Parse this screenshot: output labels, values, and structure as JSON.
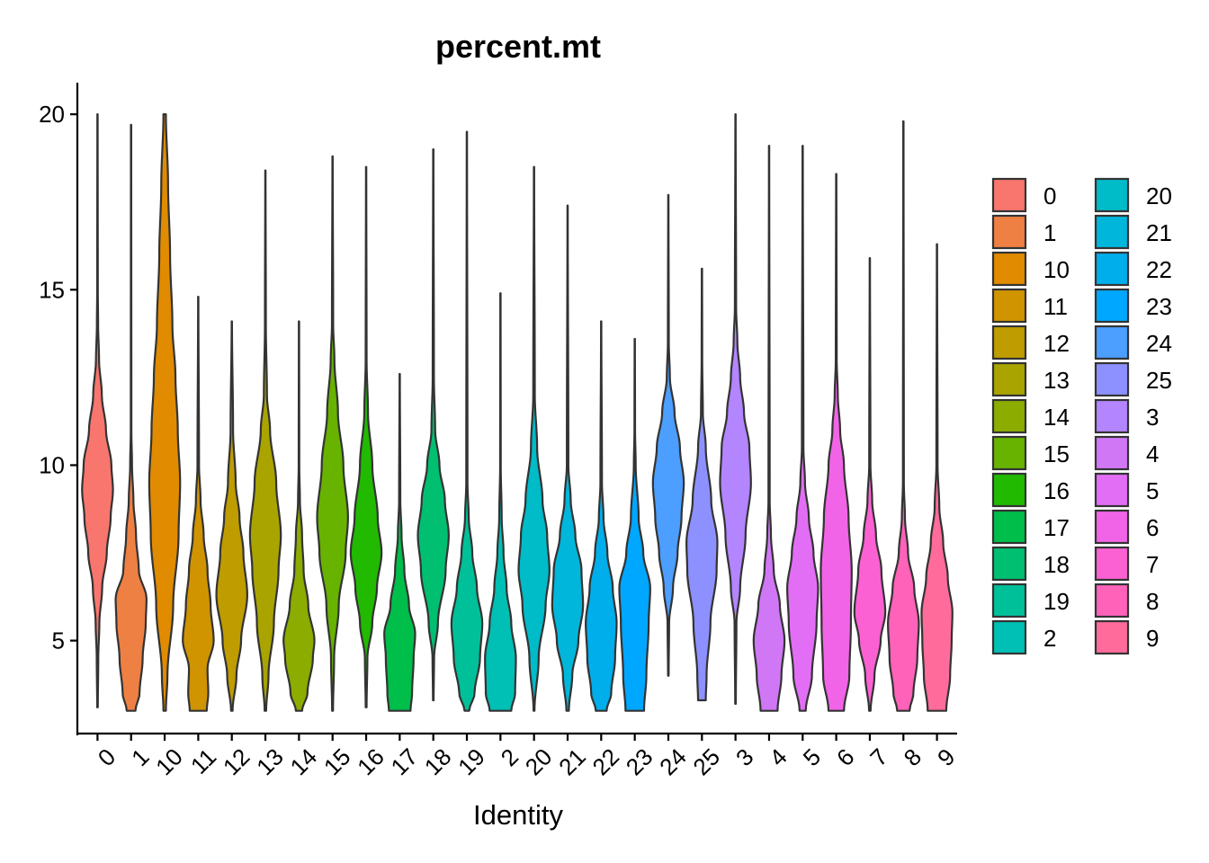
{
  "chart_data": {
    "type": "violin",
    "title": "percent.mt",
    "xlabel": "Identity",
    "ylabel": "",
    "ylim": [
      2.3,
      20.9
    ],
    "yticks": [
      5,
      10,
      15,
      20
    ],
    "grid": false,
    "legend_position": "right",
    "categories": [
      "0",
      "1",
      "10",
      "11",
      "12",
      "13",
      "14",
      "15",
      "16",
      "17",
      "18",
      "19",
      "2",
      "20",
      "21",
      "22",
      "23",
      "24",
      "25",
      "3",
      "4",
      "5",
      "6",
      "7",
      "8",
      "9"
    ],
    "colors": [
      "#F8766D",
      "#EE8044",
      "#E08B00",
      "#D09400",
      "#BF9C00",
      "#A9A400",
      "#8DAC00",
      "#67B300",
      "#21BA00",
      "#00BE4A",
      "#00BF71",
      "#00C09A",
      "#00BFB5",
      "#00BBC8",
      "#00B6DB",
      "#00AEEB",
      "#00A7FF",
      "#4C9EFF",
      "#8D91FF",
      "#B385FF",
      "#D077F6",
      "#E36EF6",
      "#F264E7",
      "#FC61D3",
      "#FF62B9",
      "#FF6C9B"
    ],
    "series": [
      {
        "name": "0",
        "min": 3.1,
        "max": 20.0,
        "profile": [
          [
            3.1,
            0.02
          ],
          [
            4.5,
            0.05
          ],
          [
            5.5,
            0.12
          ],
          [
            6.5,
            0.3
          ],
          [
            7.5,
            0.6
          ],
          [
            8.5,
            0.85
          ],
          [
            9.3,
            1.0
          ],
          [
            10.0,
            0.9
          ],
          [
            11.0,
            0.55
          ],
          [
            12.0,
            0.28
          ],
          [
            13.0,
            0.1
          ],
          [
            14.0,
            0.04
          ],
          [
            15.0,
            0.02
          ],
          [
            20.0,
            0.01
          ]
        ]
      },
      {
        "name": "1",
        "min": 3.0,
        "max": 19.7,
        "profile": [
          [
            3.0,
            0.28
          ],
          [
            3.5,
            0.55
          ],
          [
            4.5,
            0.75
          ],
          [
            5.5,
            0.95
          ],
          [
            6.2,
            1.0
          ],
          [
            7.0,
            0.5
          ],
          [
            8.0,
            0.32
          ],
          [
            9.0,
            0.15
          ],
          [
            10.0,
            0.06
          ],
          [
            11.0,
            0.02
          ],
          [
            19.7,
            0.01
          ]
        ]
      },
      {
        "name": "10",
        "min": 3.0,
        "max": 20.0,
        "profile": [
          [
            3.0,
            0.08
          ],
          [
            4.0,
            0.18
          ],
          [
            6.0,
            0.55
          ],
          [
            8.0,
            0.9
          ],
          [
            9.5,
            1.0
          ],
          [
            11.0,
            0.85
          ],
          [
            12.5,
            0.7
          ],
          [
            14.0,
            0.5
          ],
          [
            16.0,
            0.35
          ],
          [
            18.0,
            0.22
          ],
          [
            20.0,
            0.08
          ]
        ]
      },
      {
        "name": "11",
        "min": 3.0,
        "max": 14.8,
        "profile": [
          [
            3.0,
            0.55
          ],
          [
            3.5,
            0.65
          ],
          [
            4.2,
            0.6
          ],
          [
            5.0,
            1.0
          ],
          [
            6.0,
            0.8
          ],
          [
            7.0,
            0.6
          ],
          [
            8.0,
            0.35
          ],
          [
            9.0,
            0.15
          ],
          [
            10.0,
            0.05
          ],
          [
            14.8,
            0.01
          ]
        ]
      },
      {
        "name": "12",
        "min": 3.0,
        "max": 14.1,
        "profile": [
          [
            3.0,
            0.05
          ],
          [
            4.0,
            0.3
          ],
          [
            5.0,
            0.6
          ],
          [
            6.3,
            1.0
          ],
          [
            7.5,
            0.75
          ],
          [
            8.5,
            0.5
          ],
          [
            9.5,
            0.25
          ],
          [
            11.0,
            0.08
          ],
          [
            14.1,
            0.01
          ]
        ]
      },
      {
        "name": "13",
        "min": 3.0,
        "max": 18.4,
        "profile": [
          [
            3.0,
            0.05
          ],
          [
            4.0,
            0.2
          ],
          [
            5.5,
            0.55
          ],
          [
            7.0,
            0.85
          ],
          [
            8.0,
            1.0
          ],
          [
            9.5,
            0.7
          ],
          [
            11.0,
            0.3
          ],
          [
            12.0,
            0.1
          ],
          [
            14.0,
            0.03
          ],
          [
            18.4,
            0.01
          ]
        ]
      },
      {
        "name": "14",
        "min": 3.0,
        "max": 14.1,
        "profile": [
          [
            3.0,
            0.2
          ],
          [
            3.5,
            0.55
          ],
          [
            4.5,
            0.9
          ],
          [
            5.0,
            1.0
          ],
          [
            6.0,
            0.6
          ],
          [
            7.0,
            0.3
          ],
          [
            8.0,
            0.2
          ],
          [
            9.0,
            0.06
          ],
          [
            10.0,
            0.02
          ],
          [
            14.1,
            0.01
          ]
        ]
      },
      {
        "name": "15",
        "min": 3.0,
        "max": 18.8,
        "profile": [
          [
            3.0,
            0.03
          ],
          [
            4.5,
            0.1
          ],
          [
            6.0,
            0.4
          ],
          [
            7.5,
            0.85
          ],
          [
            8.5,
            1.0
          ],
          [
            10.0,
            0.7
          ],
          [
            11.5,
            0.35
          ],
          [
            13.0,
            0.12
          ],
          [
            14.0,
            0.04
          ],
          [
            18.8,
            0.01
          ]
        ]
      },
      {
        "name": "16",
        "min": 3.1,
        "max": 18.5,
        "profile": [
          [
            3.1,
            0.03
          ],
          [
            4.5,
            0.08
          ],
          [
            5.5,
            0.4
          ],
          [
            6.5,
            0.7
          ],
          [
            7.5,
            1.0
          ],
          [
            8.5,
            0.75
          ],
          [
            10.0,
            0.4
          ],
          [
            11.5,
            0.12
          ],
          [
            13.0,
            0.03
          ],
          [
            18.5,
            0.01
          ]
        ]
      },
      {
        "name": "17",
        "min": 3.0,
        "max": 12.6,
        "profile": [
          [
            3.0,
            0.7
          ],
          [
            3.5,
            0.8
          ],
          [
            4.5,
            0.9
          ],
          [
            5.2,
            1.0
          ],
          [
            6.0,
            0.6
          ],
          [
            7.0,
            0.3
          ],
          [
            8.0,
            0.12
          ],
          [
            9.0,
            0.04
          ],
          [
            12.6,
            0.01
          ]
        ]
      },
      {
        "name": "18",
        "min": 3.3,
        "max": 19.0,
        "profile": [
          [
            3.3,
            0.02
          ],
          [
            4.5,
            0.05
          ],
          [
            5.5,
            0.3
          ],
          [
            7.0,
            0.8
          ],
          [
            8.0,
            1.0
          ],
          [
            9.0,
            0.75
          ],
          [
            10.0,
            0.4
          ],
          [
            11.0,
            0.12
          ],
          [
            12.5,
            0.04
          ],
          [
            19.0,
            0.01
          ]
        ]
      },
      {
        "name": "19",
        "min": 3.0,
        "max": 19.5,
        "profile": [
          [
            3.0,
            0.15
          ],
          [
            3.5,
            0.5
          ],
          [
            4.5,
            0.85
          ],
          [
            5.5,
            1.0
          ],
          [
            6.5,
            0.65
          ],
          [
            7.5,
            0.35
          ],
          [
            8.5,
            0.12
          ],
          [
            9.5,
            0.04
          ],
          [
            19.5,
            0.01
          ]
        ]
      },
      {
        "name": "2",
        "min": 3.0,
        "max": 14.9,
        "profile": [
          [
            3.0,
            0.7
          ],
          [
            3.5,
            0.95
          ],
          [
            4.5,
            1.0
          ],
          [
            5.5,
            0.7
          ],
          [
            6.5,
            0.4
          ],
          [
            7.5,
            0.2
          ],
          [
            8.5,
            0.08
          ],
          [
            10.0,
            0.02
          ],
          [
            14.9,
            0.01
          ]
        ]
      },
      {
        "name": "20",
        "min": 3.0,
        "max": 18.5,
        "profile": [
          [
            3.0,
            0.03
          ],
          [
            4.5,
            0.3
          ],
          [
            6.0,
            0.75
          ],
          [
            7.0,
            1.0
          ],
          [
            8.0,
            0.85
          ],
          [
            9.0,
            0.55
          ],
          [
            10.5,
            0.2
          ],
          [
            12.0,
            0.05
          ],
          [
            18.5,
            0.01
          ]
        ]
      },
      {
        "name": "21",
        "min": 3.0,
        "max": 17.4,
        "profile": [
          [
            3.0,
            0.08
          ],
          [
            4.0,
            0.3
          ],
          [
            5.0,
            0.7
          ],
          [
            6.0,
            1.0
          ],
          [
            7.0,
            0.9
          ],
          [
            8.0,
            0.5
          ],
          [
            9.0,
            0.2
          ],
          [
            10.0,
            0.05
          ],
          [
            17.4,
            0.01
          ]
        ]
      },
      {
        "name": "22",
        "min": 3.0,
        "max": 14.1,
        "profile": [
          [
            3.0,
            0.35
          ],
          [
            3.5,
            0.65
          ],
          [
            4.5,
            0.9
          ],
          [
            5.5,
            1.0
          ],
          [
            6.5,
            0.75
          ],
          [
            7.5,
            0.4
          ],
          [
            8.5,
            0.15
          ],
          [
            9.5,
            0.05
          ],
          [
            14.1,
            0.01
          ]
        ]
      },
      {
        "name": "23",
        "min": 3.0,
        "max": 13.6,
        "profile": [
          [
            3.0,
            0.6
          ],
          [
            4.0,
            0.75
          ],
          [
            5.5,
            0.9
          ],
          [
            6.5,
            1.0
          ],
          [
            7.5,
            0.55
          ],
          [
            8.5,
            0.25
          ],
          [
            10.0,
            0.06
          ],
          [
            11.0,
            0.02
          ],
          [
            13.6,
            0.01
          ]
        ]
      },
      {
        "name": "24",
        "min": 4.0,
        "max": 17.7,
        "profile": [
          [
            4.0,
            0.02
          ],
          [
            5.5,
            0.05
          ],
          [
            6.5,
            0.3
          ],
          [
            7.5,
            0.6
          ],
          [
            8.5,
            0.85
          ],
          [
            9.5,
            1.0
          ],
          [
            10.5,
            0.75
          ],
          [
            11.5,
            0.4
          ],
          [
            12.5,
            0.1
          ],
          [
            13.5,
            0.03
          ],
          [
            17.7,
            0.01
          ]
        ]
      },
      {
        "name": "25",
        "min": 3.3,
        "max": 15.6,
        "profile": [
          [
            3.3,
            0.25
          ],
          [
            4.0,
            0.3
          ],
          [
            5.5,
            0.55
          ],
          [
            7.0,
            0.95
          ],
          [
            7.8,
            1.0
          ],
          [
            9.0,
            0.6
          ],
          [
            10.5,
            0.25
          ],
          [
            11.5,
            0.06
          ],
          [
            13.0,
            0.02
          ],
          [
            15.6,
            0.01
          ]
        ]
      },
      {
        "name": "3",
        "min": 3.2,
        "max": 20.0,
        "profile": [
          [
            3.2,
            0.02
          ],
          [
            5.5,
            0.06
          ],
          [
            6.5,
            0.3
          ],
          [
            8.0,
            0.65
          ],
          [
            9.5,
            1.0
          ],
          [
            10.5,
            0.9
          ],
          [
            11.5,
            0.55
          ],
          [
            12.5,
            0.3
          ],
          [
            13.5,
            0.12
          ],
          [
            14.5,
            0.04
          ],
          [
            20.0,
            0.01
          ]
        ]
      },
      {
        "name": "4",
        "min": 3.0,
        "max": 19.1,
        "profile": [
          [
            3.0,
            0.55
          ],
          [
            4.0,
            0.8
          ],
          [
            5.0,
            1.0
          ],
          [
            6.0,
            0.7
          ],
          [
            7.0,
            0.3
          ],
          [
            8.0,
            0.12
          ],
          [
            9.0,
            0.04
          ],
          [
            19.1,
            0.01
          ]
        ]
      },
      {
        "name": "5",
        "min": 3.0,
        "max": 19.1,
        "profile": [
          [
            3.0,
            0.2
          ],
          [
            4.0,
            0.6
          ],
          [
            5.5,
            0.9
          ],
          [
            6.5,
            1.0
          ],
          [
            7.5,
            0.7
          ],
          [
            8.5,
            0.4
          ],
          [
            9.5,
            0.15
          ],
          [
            10.5,
            0.05
          ],
          [
            19.1,
            0.01
          ]
        ]
      },
      {
        "name": "6",
        "min": 3.0,
        "max": 18.3,
        "profile": [
          [
            3.0,
            0.5
          ],
          [
            4.0,
            0.85
          ],
          [
            5.5,
            0.95
          ],
          [
            7.0,
            1.0
          ],
          [
            8.5,
            0.8
          ],
          [
            10.0,
            0.5
          ],
          [
            11.0,
            0.25
          ],
          [
            12.0,
            0.1
          ],
          [
            13.0,
            0.03
          ],
          [
            18.3,
            0.01
          ]
        ]
      },
      {
        "name": "7",
        "min": 3.0,
        "max": 15.9,
        "profile": [
          [
            3.0,
            0.05
          ],
          [
            4.0,
            0.3
          ],
          [
            5.0,
            0.7
          ],
          [
            5.8,
            1.0
          ],
          [
            7.0,
            0.75
          ],
          [
            8.0,
            0.4
          ],
          [
            9.0,
            0.15
          ],
          [
            10.0,
            0.04
          ],
          [
            15.9,
            0.01
          ]
        ]
      },
      {
        "name": "8",
        "min": 3.0,
        "max": 19.8,
        "profile": [
          [
            3.0,
            0.4
          ],
          [
            3.5,
            0.65
          ],
          [
            4.5,
            0.9
          ],
          [
            5.5,
            1.0
          ],
          [
            6.5,
            0.7
          ],
          [
            7.5,
            0.3
          ],
          [
            8.5,
            0.1
          ],
          [
            9.5,
            0.03
          ],
          [
            19.8,
            0.01
          ]
        ]
      },
      {
        "name": "9",
        "min": 3.0,
        "max": 16.3,
        "profile": [
          [
            3.0,
            0.6
          ],
          [
            4.0,
            0.85
          ],
          [
            5.0,
            0.95
          ],
          [
            5.8,
            1.0
          ],
          [
            6.8,
            0.7
          ],
          [
            7.8,
            0.4
          ],
          [
            8.8,
            0.15
          ],
          [
            10.0,
            0.04
          ],
          [
            16.3,
            0.01
          ]
        ]
      }
    ]
  }
}
